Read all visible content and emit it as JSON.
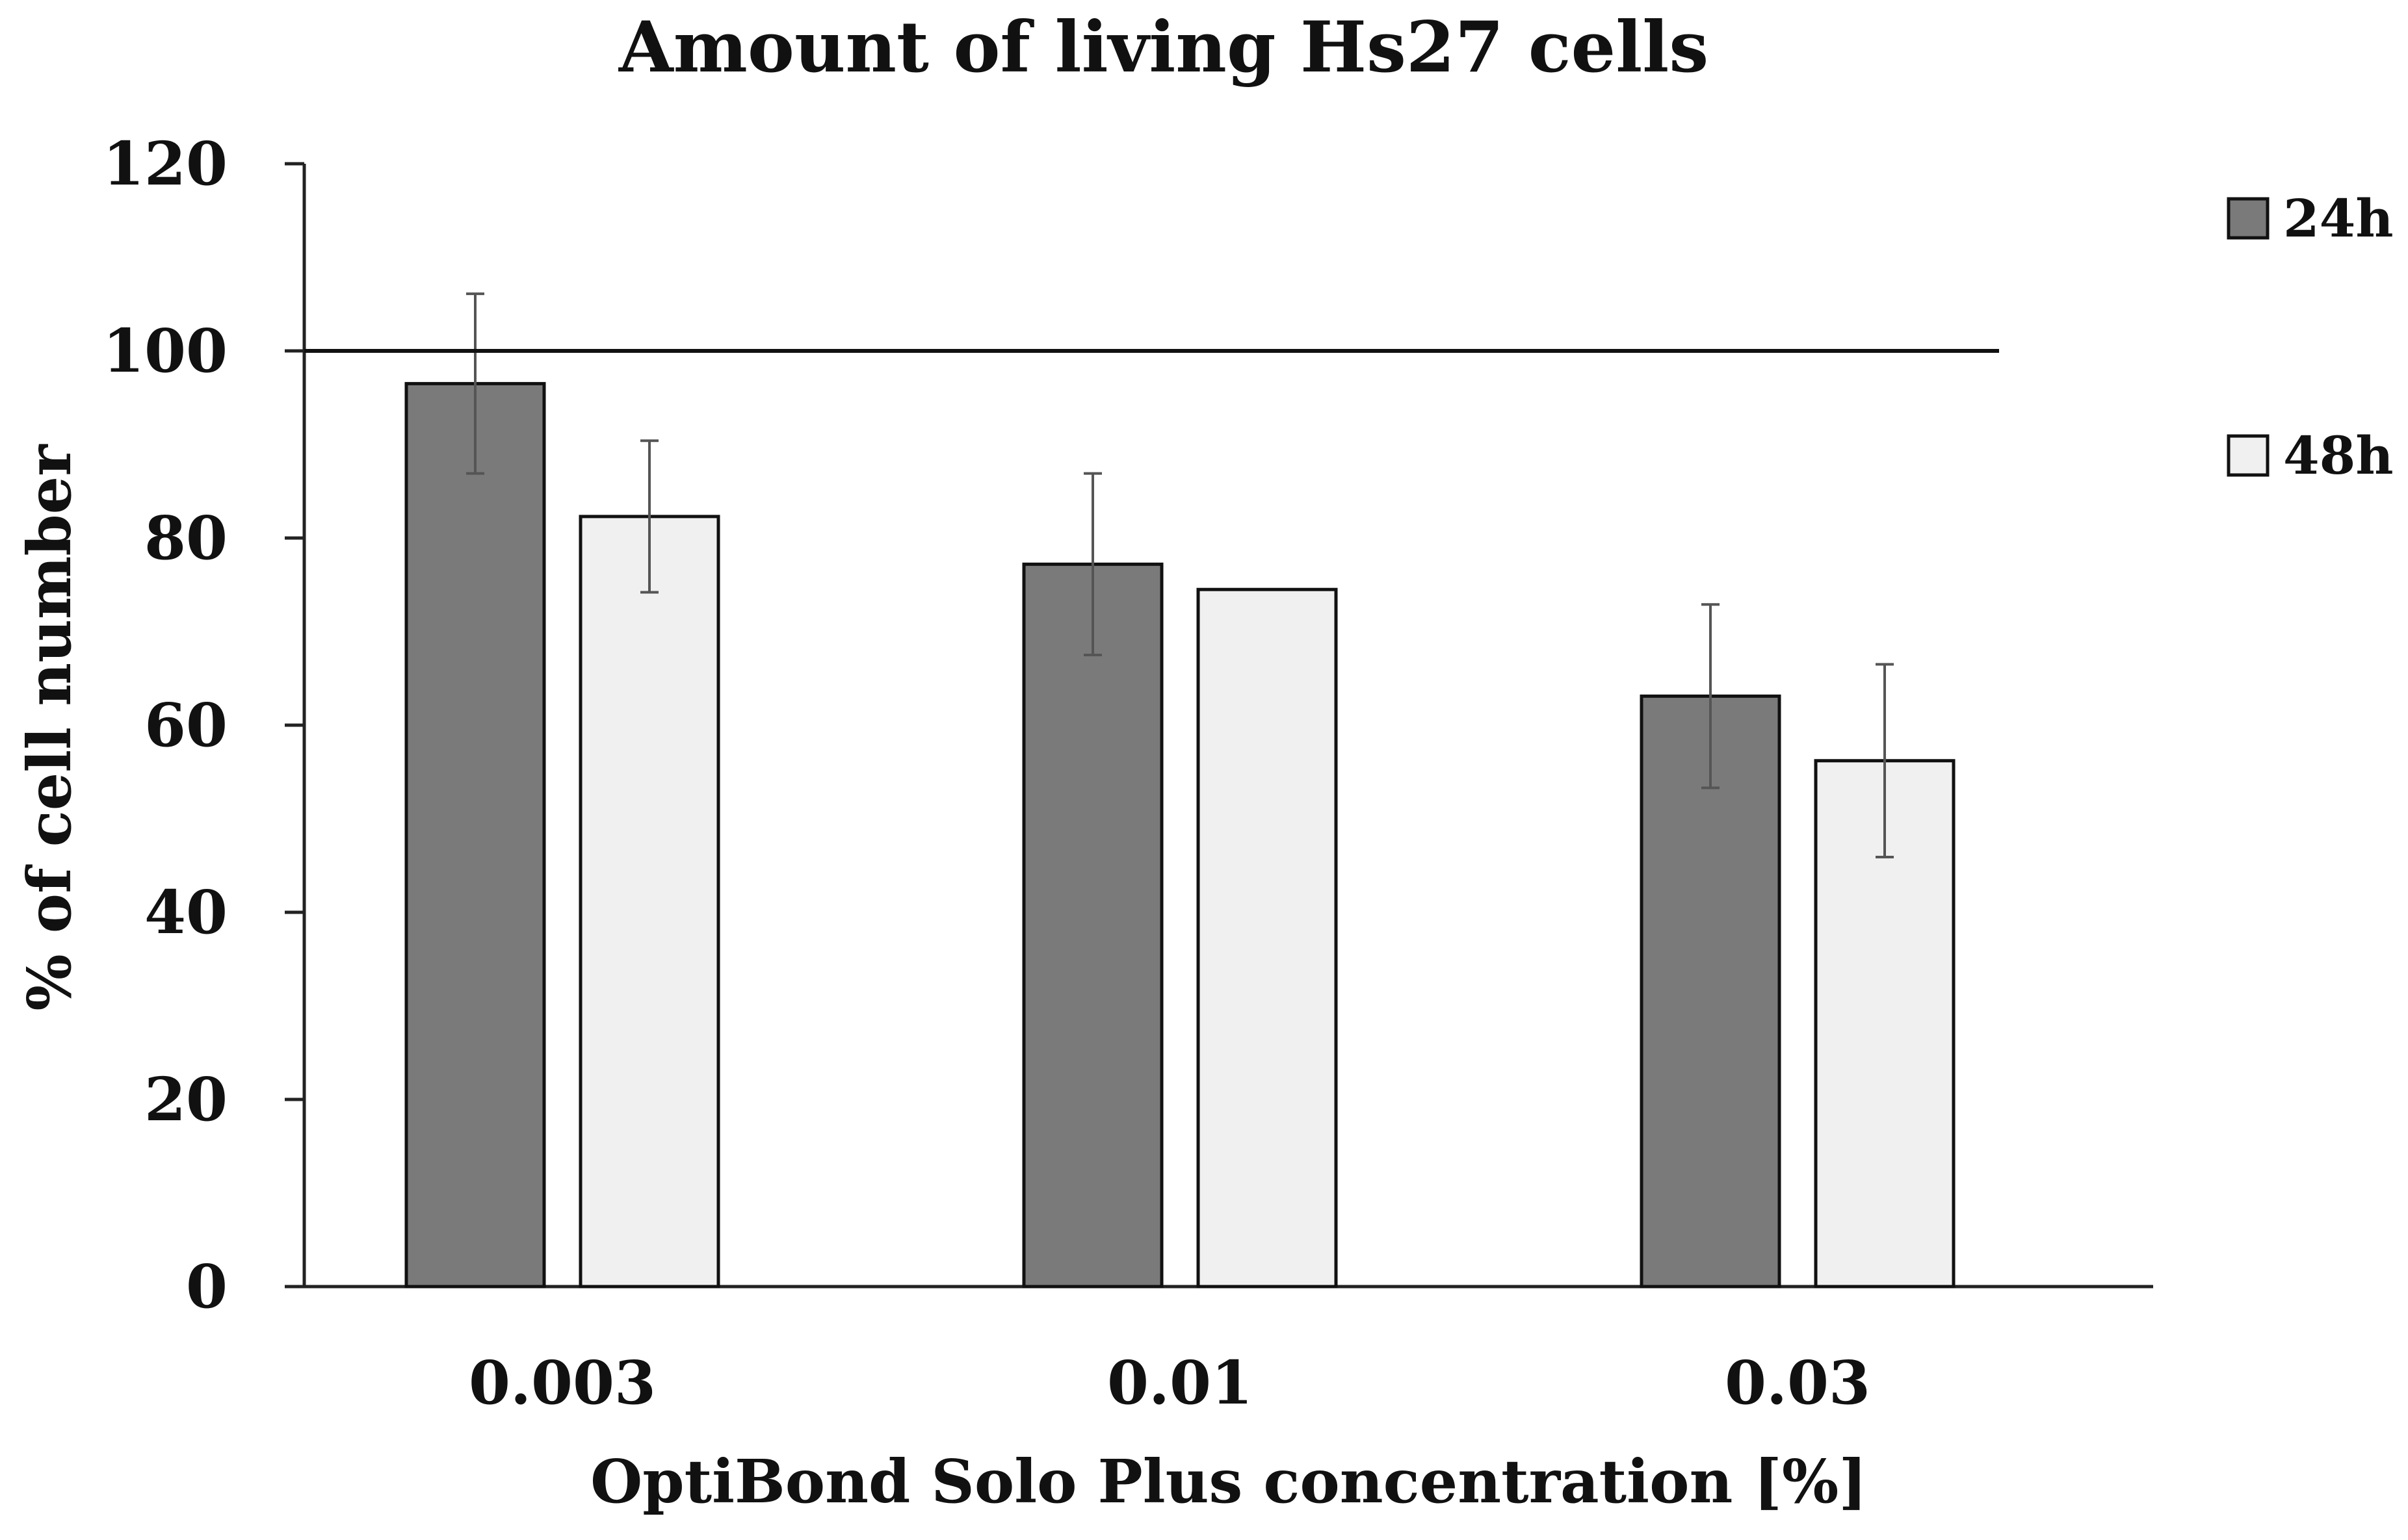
{
  "chart_data": {
    "type": "bar",
    "title": "Amount of living Hs27 cells",
    "xlabel": "OptiBond Solo Plus concentration [%]",
    "ylabel": "% of cell number",
    "categories": [
      "0.003",
      "0.01",
      "0.03"
    ],
    "ylim": [
      0,
      120
    ],
    "yticks": [
      0,
      20,
      40,
      60,
      80,
      100,
      120
    ],
    "reference_line": 100,
    "grid": false,
    "legend_position": "top-right",
    "series": [
      {
        "name": "24h",
        "color": "#7a7a7a",
        "values": [
          96.5,
          77.2,
          63.1
        ],
        "errors": [
          9.6,
          9.7,
          9.8
        ]
      },
      {
        "name": "48h",
        "color": "#f0f0f0",
        "values": [
          82.3,
          74.5,
          56.2
        ],
        "errors": [
          8.1,
          0,
          10.3
        ]
      }
    ]
  }
}
